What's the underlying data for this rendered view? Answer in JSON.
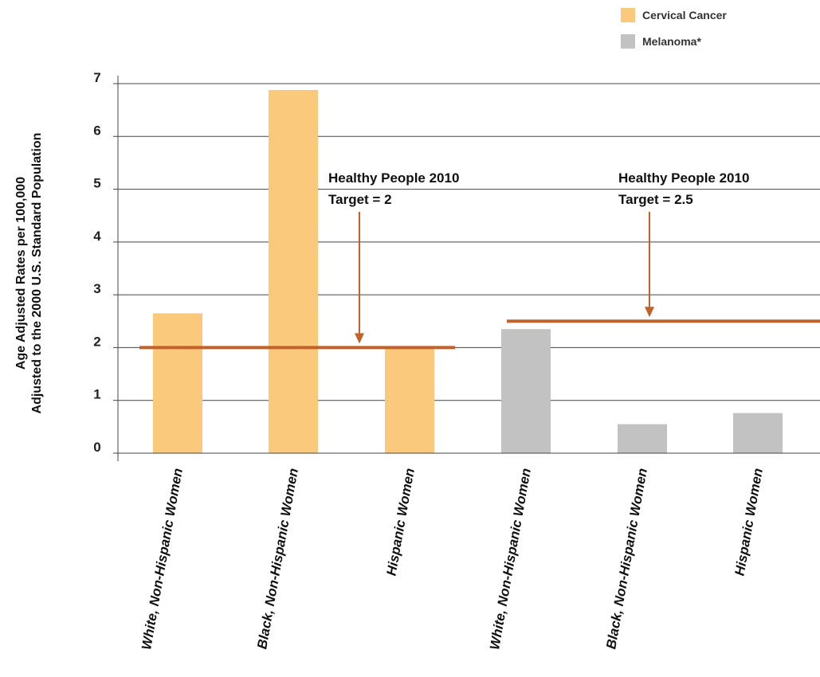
{
  "chart_data": {
    "type": "bar",
    "categories": [
      "White, Non-Hispanic Women",
      "Black, Non-Hispanic Women",
      "Hispanic Women",
      "White, Non-Hispanic Women",
      "Black, Non-Hispanic Women",
      "Hispanic Women"
    ],
    "series": [
      {
        "name": "Cervical Cancer",
        "color": "#fbc97b",
        "values": [
          2.65,
          6.88,
          2.0,
          null,
          null,
          null
        ]
      },
      {
        "name": "Melanoma*",
        "color": "#c2c2c2",
        "values": [
          null,
          null,
          null,
          2.35,
          0.55,
          0.76
        ]
      }
    ],
    "ylabel_line1": "Age Adjusted Rates per 100,000",
    "ylabel_line2": "Adjusted to the 2000 U.S. Standard Population",
    "ylim": [
      0,
      7
    ],
    "yticks": [
      "0",
      "1",
      "2",
      "3",
      "4",
      "5",
      "6",
      "7"
    ],
    "grid": true,
    "legend_position": "top-right",
    "targets": [
      {
        "label_line1": "Healthy People 2010",
        "label_line2": "Target = 2",
        "value": 2,
        "group": "Cervical Cancer",
        "color": "#c0622a"
      },
      {
        "label_line1": "Healthy People 2010",
        "label_line2": "Target = 2.5",
        "value": 2.5,
        "group": "Melanoma*",
        "color": "#c0622a"
      }
    ]
  }
}
